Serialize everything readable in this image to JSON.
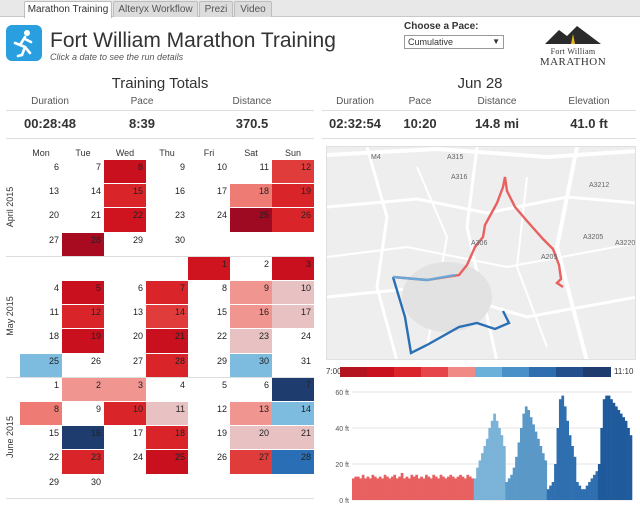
{
  "tabs": [
    {
      "label": "Marathon Training",
      "active": true
    },
    {
      "label": "Alteryx Workflow",
      "active": false
    },
    {
      "label": "Prezi",
      "active": false
    },
    {
      "label": "Video",
      "active": false
    }
  ],
  "header": {
    "title": "Fort William Marathon Training",
    "subtitle": "Click a date to see the run details",
    "pace_label": "Choose a Pace:",
    "pace_value": "Cumulative",
    "brand_line1": "Fort William",
    "brand_line2": "MARATHON"
  },
  "totals": {
    "title": "Training Totals",
    "labels": [
      "Duration",
      "Pace",
      "Distance"
    ],
    "values": [
      "00:28:48",
      "8:39",
      "370.5"
    ]
  },
  "run": {
    "title": "Jun 28",
    "labels": [
      "Duration",
      "Pace",
      "Distance",
      "Elevation"
    ],
    "values": [
      "02:32:54",
      "10:20",
      "14.8 mi",
      "41.0 ft"
    ]
  },
  "calendar": {
    "days": [
      "Mon",
      "Tue",
      "Wed",
      "Thu",
      "Fri",
      "Sat",
      "Sun"
    ],
    "months": [
      {
        "label": "April 2015",
        "rows": [
          [
            null,
            {
              "d": "6"
            },
            {
              "d": "7"
            },
            {
              "d": "8",
              "c": "#c8101e"
            },
            {
              "d": "9"
            },
            {
              "d": "10"
            },
            {
              "d": "11"
            },
            {
              "d": "12",
              "c": "#e03c3c"
            }
          ],
          [
            null,
            {
              "d": "13"
            },
            {
              "d": "14"
            },
            {
              "d": "15",
              "c": "#d9252a"
            },
            {
              "d": "16"
            },
            {
              "d": "17"
            },
            {
              "d": "18",
              "c": "#ee7b74"
            },
            {
              "d": "19",
              "c": "#d9252a"
            }
          ],
          [
            null,
            {
              "d": "20"
            },
            {
              "d": "21"
            },
            {
              "d": "22",
              "c": "#d0141f"
            },
            {
              "d": "23"
            },
            {
              "d": "24"
            },
            {
              "d": "25",
              "c": "#9d0a22"
            },
            {
              "d": "26",
              "c": "#d9252a"
            }
          ],
          [
            null,
            {
              "d": "27"
            },
            {
              "d": "28",
              "c": "#a80b1f"
            },
            {
              "d": "29"
            },
            {
              "d": "30"
            },
            null,
            null,
            null
          ]
        ]
      },
      {
        "label": "May 2015",
        "rows": [
          [
            null,
            null,
            null,
            null,
            null,
            {
              "d": "1",
              "c": "#d0141f"
            },
            {
              "d": "2"
            },
            {
              "d": "3",
              "c": "#c8101e"
            }
          ],
          [
            null,
            {
              "d": "4"
            },
            {
              "d": "5",
              "c": "#c8101e"
            },
            {
              "d": "6"
            },
            {
              "d": "7",
              "c": "#d9252a"
            },
            {
              "d": "8"
            },
            {
              "d": "9",
              "c": "#f09590"
            },
            {
              "d": "10",
              "c": "#e8c2c2"
            }
          ],
          [
            null,
            {
              "d": "11"
            },
            {
              "d": "12",
              "c": "#d9252a"
            },
            {
              "d": "13"
            },
            {
              "d": "14",
              "c": "#e03c3c"
            },
            {
              "d": "15"
            },
            {
              "d": "16",
              "c": "#f09590"
            },
            {
              "d": "17",
              "c": "#e8c2c2"
            }
          ],
          [
            null,
            {
              "d": "18"
            },
            {
              "d": "19",
              "c": "#c8101e"
            },
            {
              "d": "20"
            },
            {
              "d": "21",
              "c": "#c8101e"
            },
            {
              "d": "22"
            },
            {
              "d": "23",
              "c": "#e8c2c2"
            },
            {
              "d": "24"
            }
          ],
          [
            null,
            {
              "d": "25",
              "c": "#7dbcdf"
            },
            {
              "d": "26"
            },
            {
              "d": "27"
            },
            {
              "d": "28",
              "c": "#d9252a"
            },
            {
              "d": "29"
            },
            {
              "d": "30",
              "c": "#7dbcdf"
            },
            {
              "d": "31"
            }
          ]
        ]
      },
      {
        "label": "June 2015",
        "rows": [
          [
            null,
            {
              "d": "1"
            },
            {
              "d": "2",
              "c": "#f09590"
            },
            {
              "d": "3",
              "c": "#f09590"
            },
            {
              "d": "4"
            },
            {
              "d": "5"
            },
            {
              "d": "6"
            },
            {
              "d": "7",
              "c": "#1f3c6e"
            }
          ],
          [
            null,
            {
              "d": "8",
              "c": "#ee7b74"
            },
            {
              "d": "9"
            },
            {
              "d": "10",
              "c": "#d9252a"
            },
            {
              "d": "11",
              "c": "#e8c2c2"
            },
            {
              "d": "12"
            },
            {
              "d": "13",
              "c": "#f09590"
            },
            {
              "d": "14",
              "c": "#7dbcdf"
            }
          ],
          [
            null,
            {
              "d": "15"
            },
            {
              "d": "16",
              "c": "#1f3c6e"
            },
            {
              "d": "17"
            },
            {
              "d": "18",
              "c": "#d9252a"
            },
            {
              "d": "19"
            },
            {
              "d": "20",
              "c": "#e8c2c2"
            },
            {
              "d": "21",
              "c": "#e8c2c2"
            }
          ],
          [
            null,
            {
              "d": "22"
            },
            {
              "d": "23",
              "c": "#d9252a"
            },
            {
              "d": "24"
            },
            {
              "d": "25",
              "c": "#c8101e"
            },
            {
              "d": "26"
            },
            {
              "d": "27",
              "c": "#e03c3c"
            },
            {
              "d": "28",
              "c": "#2a6fb5"
            }
          ],
          [
            null,
            {
              "d": "29"
            },
            {
              "d": "30"
            },
            null,
            null,
            null,
            null,
            null
          ]
        ]
      }
    ]
  },
  "map": {
    "road_labels": [
      "M4",
      "A315",
      "A316",
      "A3212",
      "A306",
      "A3205",
      "A3220",
      "A205"
    ]
  },
  "pace_legend": {
    "min_label": "7:00",
    "max_label": "11:10",
    "colors": [
      "#b4141f",
      "#c8101e",
      "#d9252a",
      "#e6454a",
      "#f08a84",
      "#6ab0d8",
      "#4a90c8",
      "#2e6eaf",
      "#23508c",
      "#1f3c6e"
    ]
  },
  "chart_data": {
    "type": "area",
    "title": "",
    "xlabel": "",
    "ylabel": "",
    "y_ticks": [
      "0 ft",
      "20 ft",
      "40 ft",
      "60 ft"
    ],
    "ylim": [
      0,
      60
    ],
    "segments": [
      {
        "color": "#e86060",
        "values": [
          12,
          13,
          13,
          12,
          14,
          12,
          13,
          12,
          14,
          13,
          12,
          13,
          12,
          14,
          13,
          12,
          13,
          14,
          12,
          13,
          15,
          12,
          13,
          12,
          14,
          13,
          14,
          12,
          13,
          12,
          14,
          13,
          12,
          14,
          13,
          12,
          14,
          13,
          12,
          13,
          14,
          13,
          12,
          13,
          14,
          13,
          12,
          14,
          13,
          12
        ]
      },
      {
        "color": "#7ab2d8",
        "values": [
          12,
          18,
          22,
          26,
          30,
          34,
          40,
          44,
          48,
          44,
          40,
          36,
          30
        ]
      },
      {
        "color": "#5a98c8",
        "values": [
          10,
          12,
          14,
          18,
          24,
          32,
          40,
          48,
          52,
          50,
          46,
          42,
          38,
          34,
          30,
          26,
          22
        ]
      },
      {
        "color": "#2f6fb0",
        "values": [
          6,
          8,
          10,
          20,
          40,
          56,
          58,
          52,
          44,
          36,
          30,
          24,
          10,
          8,
          6,
          6,
          8,
          10,
          12,
          14,
          16
        ]
      },
      {
        "color": "#1f5a9c",
        "values": [
          20,
          40,
          56,
          58,
          58,
          56,
          54,
          52,
          50,
          48,
          46,
          44,
          40,
          36
        ]
      }
    ]
  }
}
